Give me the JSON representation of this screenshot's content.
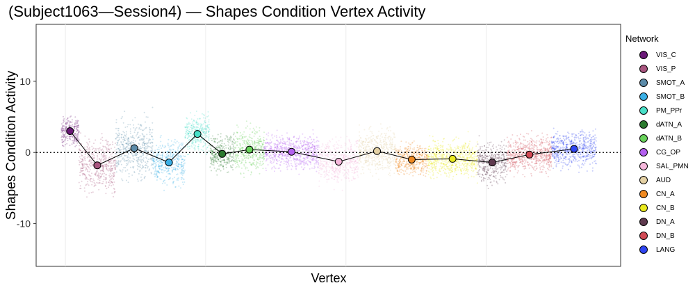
{
  "chart_data": {
    "type": "scatter",
    "title": "(Subject1063—Session4) — Shapes Condition Vertex Activity",
    "xlabel": "Vertex",
    "ylabel": "Shapes Condition Activity",
    "ylim": [
      -16,
      18
    ],
    "yticks": [
      10,
      0,
      -10
    ],
    "ytick_labels": [
      "10",
      "0",
      "-10"
    ],
    "x_ticks_shown": false,
    "vertical_grid": true,
    "zero_reference_line": "dotted",
    "legend_title": "Network",
    "legend_position": "right",
    "series": [
      {
        "name": "VIS_C",
        "color": "#6b1a78",
        "x_start": 0,
        "x_end": 360,
        "mean": 3.0,
        "spread": 3.2
      },
      {
        "name": "VIS_P",
        "color": "#a8557f",
        "x_start": 360,
        "x_end": 1100,
        "mean": -1.8,
        "spread": 6.0
      },
      {
        "name": "SMOT_A",
        "color": "#5b8ba9",
        "x_start": 1100,
        "x_end": 1850,
        "mean": 0.6,
        "spread": 7.0
      },
      {
        "name": "SMOT_B",
        "color": "#3bb0e6",
        "x_start": 1850,
        "x_end": 2500,
        "mean": -1.4,
        "spread": 5.0
      },
      {
        "name": "PM_PPr",
        "color": "#48e0c8",
        "x_start": 2500,
        "x_end": 3000,
        "mean": 2.6,
        "spread": 4.5
      },
      {
        "name": "dATN_A",
        "color": "#2b7a2e",
        "x_start": 3000,
        "x_end": 3500,
        "mean": -0.2,
        "spread": 4.0
      },
      {
        "name": "dATN_B",
        "color": "#68d25a",
        "x_start": 3500,
        "x_end": 4100,
        "mean": 0.4,
        "spread": 4.8
      },
      {
        "name": "CG_OP",
        "color": "#b35fef",
        "x_start": 4100,
        "x_end": 5200,
        "mean": 0.1,
        "spread": 3.8
      },
      {
        "name": "SAL_PMN",
        "color": "#f6b8dc",
        "x_start": 5200,
        "x_end": 6000,
        "mean": -1.3,
        "spread": 5.0
      },
      {
        "name": "AUD",
        "color": "#e4d1a4",
        "x_start": 6000,
        "x_end": 6750,
        "mean": 0.2,
        "spread": 4.5
      },
      {
        "name": "CN_A",
        "color": "#f08a22",
        "x_start": 6750,
        "x_end": 7400,
        "mean": -1.0,
        "spread": 3.5
      },
      {
        "name": "CN_B",
        "color": "#eaea1e",
        "x_start": 7400,
        "x_end": 8400,
        "mean": -0.9,
        "spread": 4.0
      },
      {
        "name": "DN_A",
        "color": "#5f3a4e",
        "x_start": 8400,
        "x_end": 9000,
        "mean": -1.4,
        "spread": 4.5
      },
      {
        "name": "DN_B",
        "color": "#d14a55",
        "x_start": 9000,
        "x_end": 9900,
        "mean": -0.3,
        "spread": 4.0
      },
      {
        "name": "LANG",
        "color": "#2f45f2",
        "x_start": 9900,
        "x_end": 10800,
        "mean": 0.5,
        "spread": 4.0
      }
    ]
  }
}
